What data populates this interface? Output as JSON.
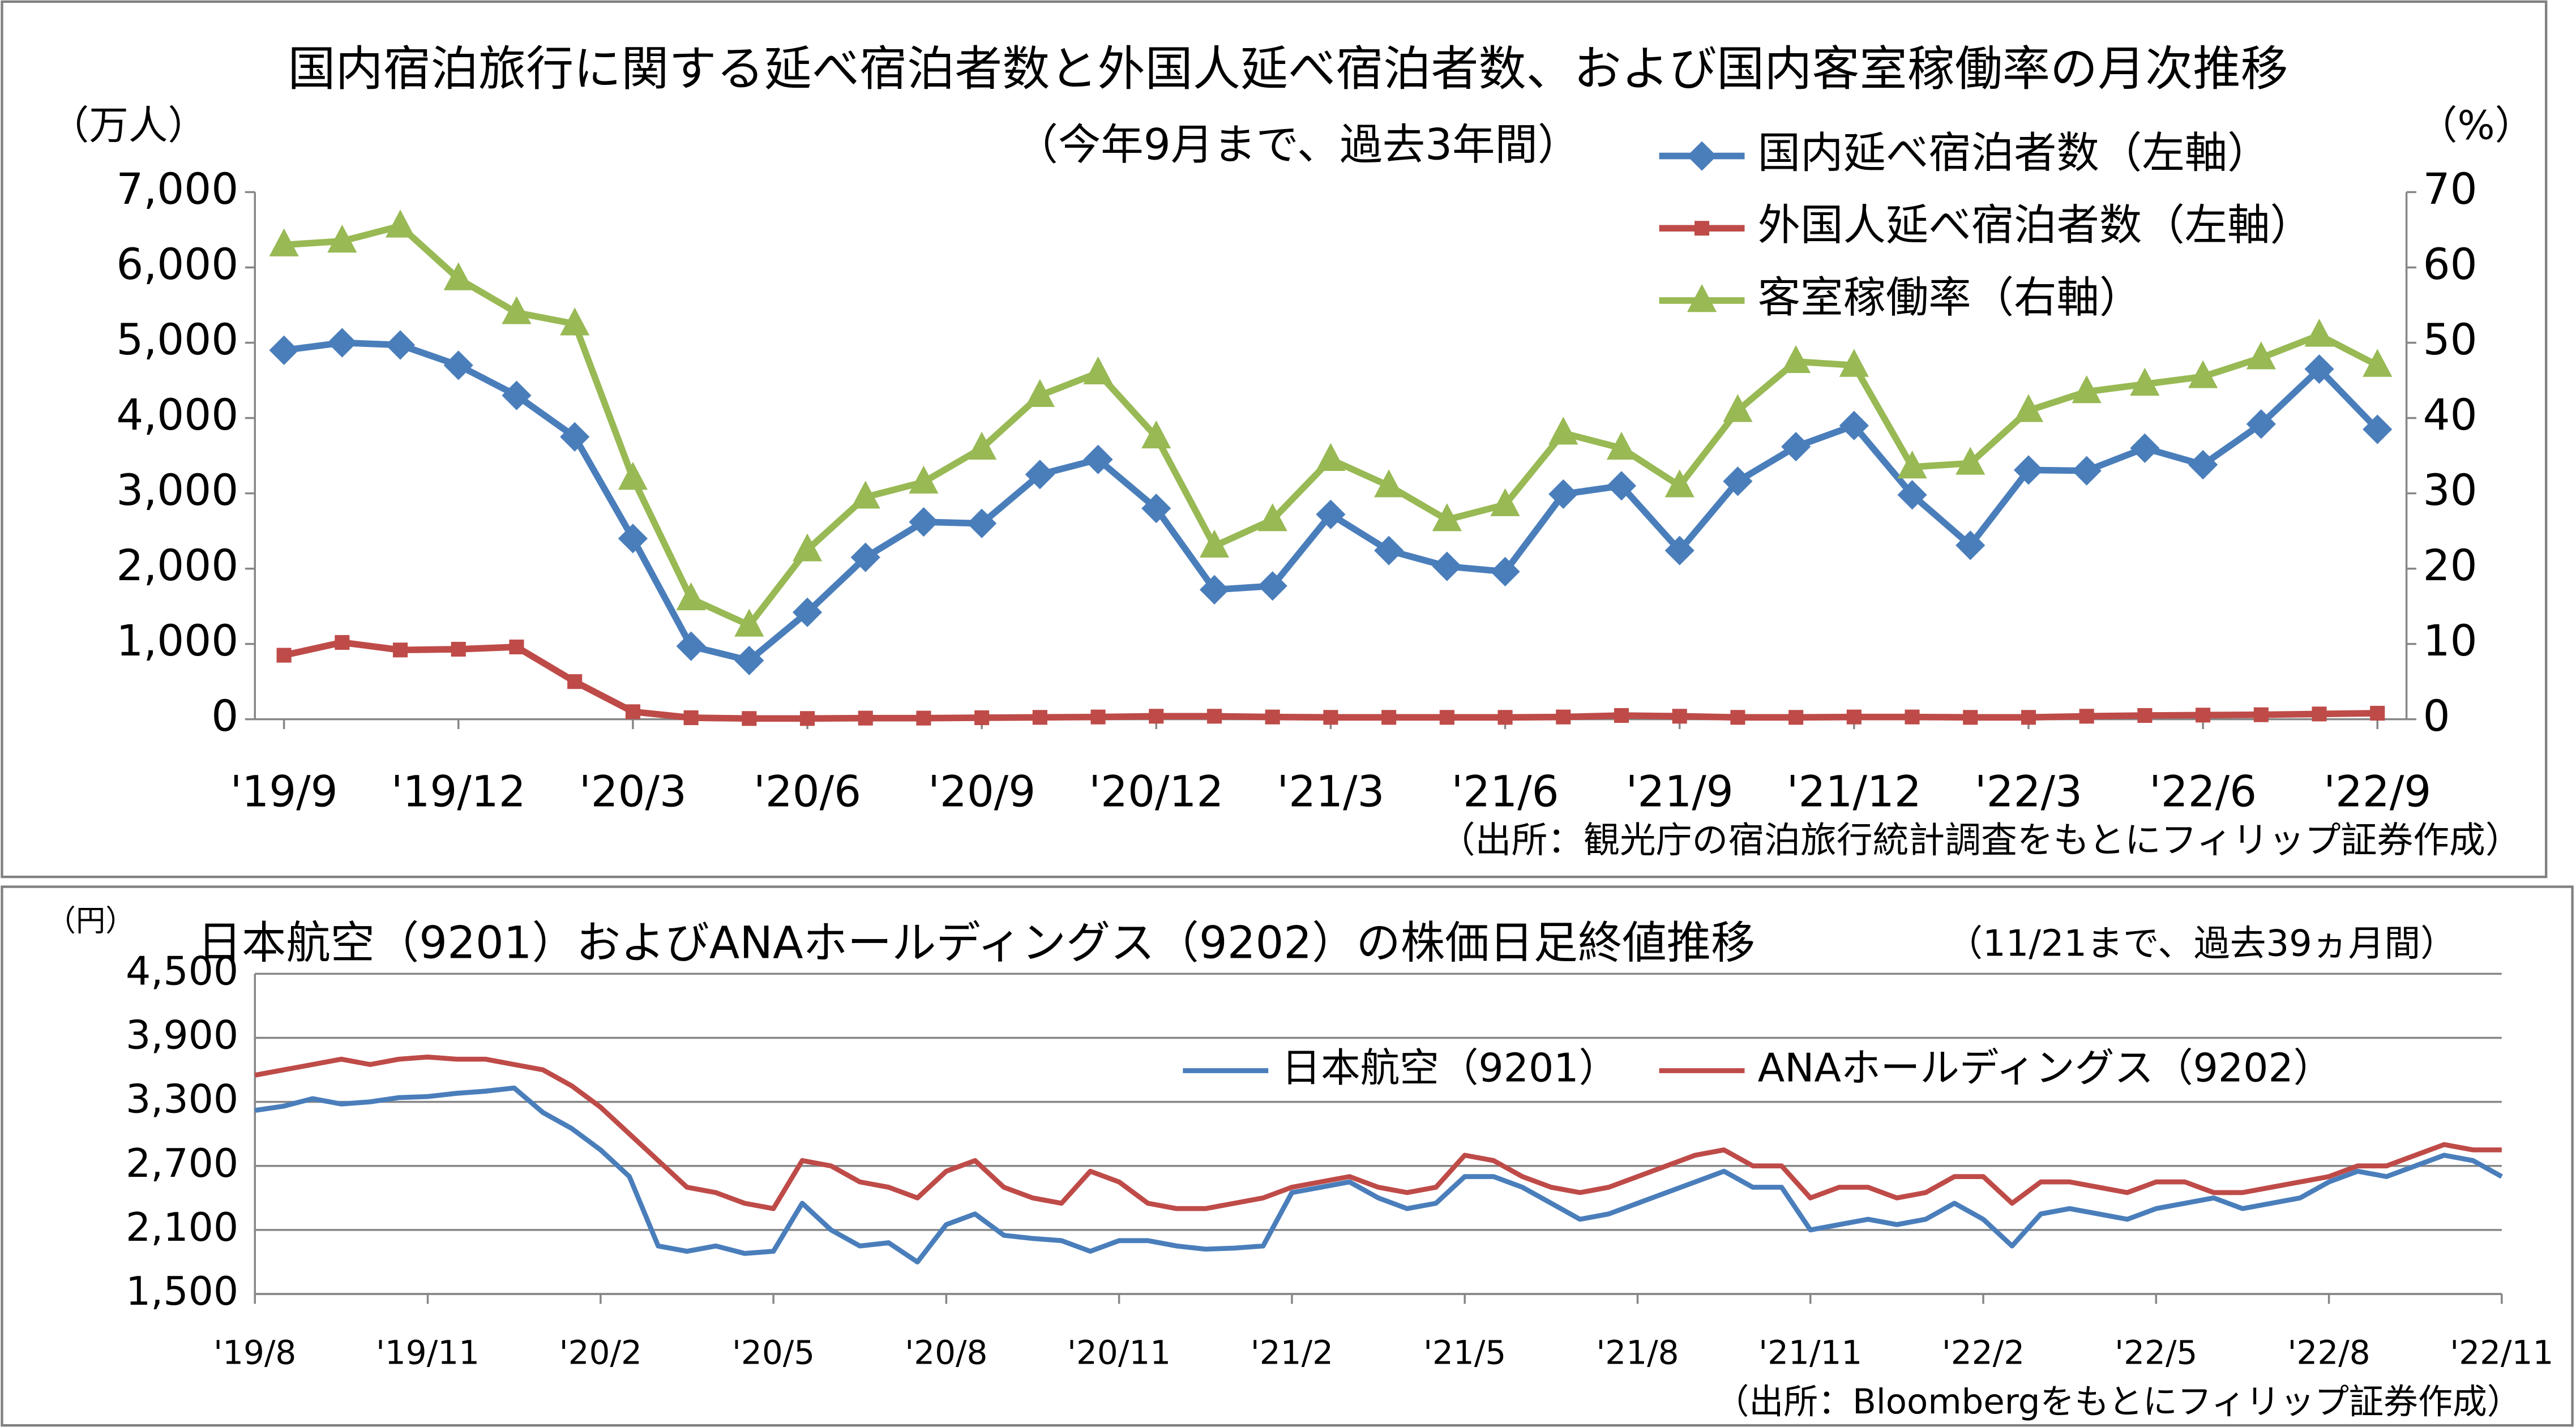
{
  "chart_data": [
    {
      "type": "line",
      "title": "国内宿泊旅行に関する延べ宿泊者数と外国人延べ宿泊者数、および国内客室稼働率の月次推移",
      "subtitle": "（今年9月まで、過去3年間）",
      "y_label": "（万人）",
      "y2_label": "（%）",
      "source": "（出所：観光庁の宿泊旅行統計調査をもとにフィリップ証券作成）",
      "categories": [
        "'19/9",
        null,
        null,
        "'19/12",
        null,
        null,
        "'20/3",
        null,
        null,
        "'20/6",
        null,
        null,
        "'20/9",
        null,
        null,
        "'20/12",
        null,
        null,
        "'21/3",
        null,
        null,
        "'21/6",
        null,
        null,
        "'21/9",
        null,
        null,
        "'21/12",
        null,
        null,
        "'22/3",
        null,
        null,
        "'22/6",
        null,
        null,
        "'22/9"
      ],
      "series": [
        {
          "name": "国内延べ宿泊者数（左軸）",
          "color": "#4a7ebb",
          "marker": "diamond",
          "values": [
            4900,
            5000,
            4970,
            4700,
            4300,
            3750,
            2400,
            970,
            780,
            1420,
            2150,
            2620,
            2600,
            3250,
            3450,
            2800,
            1720,
            1770,
            2720,
            2240,
            2030,
            1960,
            2990,
            3100,
            2240,
            3160,
            3620,
            3900,
            2980,
            2310,
            3310,
            3300,
            3600,
            3380,
            3920,
            4650,
            3850
          ]
        },
        {
          "name": "外国人延べ宿泊者数（左軸）",
          "color": "#be4b48",
          "marker": "square",
          "values": [
            850,
            1020,
            920,
            930,
            960,
            500,
            100,
            20,
            10,
            10,
            15,
            15,
            20,
            25,
            30,
            40,
            40,
            30,
            25,
            25,
            25,
            25,
            30,
            50,
            40,
            25,
            25,
            30,
            30,
            25,
            25,
            40,
            50,
            55,
            60,
            70,
            80
          ]
        },
        {
          "name": "客室稼働率（右軸）",
          "color": "#98b954",
          "marker": "triangle",
          "axis": "y2",
          "values": [
            63,
            63.5,
            65.5,
            58.5,
            54,
            52.5,
            32,
            16,
            12.5,
            22.5,
            29.5,
            31.5,
            36,
            43,
            46,
            37.5,
            23,
            26.5,
            34.5,
            31,
            26.5,
            28.5,
            38,
            36,
            31,
            41,
            47.5,
            47,
            33.5,
            34,
            41,
            43.5,
            44.5,
            45.5,
            48,
            51,
            47
          ]
        }
      ],
      "ylim": [
        0,
        7000
      ],
      "yticks": [
        0,
        {
          "value": 1000,
          "label": "1,000"
        },
        {
          "value": 2000,
          "label": "2,000"
        },
        {
          "value": 3000,
          "label": "3,000"
        },
        {
          "value": 4000,
          "label": "4,000"
        },
        {
          "value": 5000,
          "label": "5,000"
        },
        {
          "value": 6000,
          "label": "6,000"
        },
        {
          "value": 7000,
          "label": "7,000"
        }
      ],
      "y2lim": [
        0,
        70
      ],
      "y2ticks": [
        0,
        10,
        20,
        30,
        40,
        50,
        60,
        70
      ],
      "grid": false,
      "legend": "upper right"
    },
    {
      "type": "line",
      "title": "日本航空（9201）およびANAホールディングス（9202）の株価日足終値推移",
      "subtitle": "（11/21まで、過去39ヵ月間）",
      "y_label": "（円）",
      "source": "（出所：Bloombergをもとにフィリップ証券作成）",
      "categories": [
        "'19/8",
        null,
        null,
        null,
        null,
        null,
        "'19/11",
        null,
        null,
        null,
        null,
        null,
        "'20/2",
        null,
        null,
        null,
        null,
        null,
        "'20/5",
        null,
        null,
        null,
        null,
        null,
        "'20/8",
        null,
        null,
        null,
        null,
        null,
        "'20/11",
        null,
        null,
        null,
        null,
        null,
        "'21/2",
        null,
        null,
        null,
        null,
        null,
        "'21/5",
        null,
        null,
        null,
        null,
        null,
        "'21/8",
        null,
        null,
        null,
        null,
        null,
        "'21/11",
        null,
        null,
        null,
        null,
        null,
        "'22/2",
        null,
        null,
        null,
        null,
        null,
        "'22/5",
        null,
        null,
        null,
        null,
        null,
        "'22/8",
        null,
        null,
        null,
        null,
        null,
        "'22/11"
      ],
      "series": [
        {
          "name": "日本航空（9201）",
          "color": "#4a7ebb",
          "values": [
            3220,
            3260,
            3330,
            3280,
            3300,
            3340,
            3350,
            3380,
            3400,
            3430,
            3200,
            3050,
            2850,
            2600,
            1950,
            1900,
            1950,
            1880,
            1900,
            2350,
            2100,
            1950,
            1980,
            1800,
            2150,
            2250,
            2050,
            2020,
            2000,
            1900,
            2000,
            2000,
            1950,
            1920,
            1930,
            1950,
            2450,
            2500,
            2550,
            2400,
            2300,
            2350,
            2600,
            2600,
            2500,
            2350,
            2200,
            2250,
            2350,
            2450,
            2550,
            2650,
            2500,
            2500,
            2100,
            2150,
            2200,
            2150,
            2200,
            2350,
            2200,
            1950,
            2250,
            2300,
            2250,
            2200,
            2300,
            2350,
            2400,
            2300,
            2350,
            2400,
            2550,
            2650,
            2600,
            2700,
            2800,
            2750,
            2600
          ]
        },
        {
          "name": "ANAホールディングス（9202）",
          "color": "#be4b48",
          "values": [
            3550,
            3600,
            3650,
            3700,
            3650,
            3700,
            3720,
            3700,
            3700,
            3650,
            3600,
            3450,
            3250,
            3000,
            2750,
            2500,
            2450,
            2350,
            2300,
            2750,
            2700,
            2550,
            2500,
            2400,
            2650,
            2750,
            2500,
            2400,
            2350,
            2650,
            2550,
            2350,
            2300,
            2300,
            2350,
            2400,
            2500,
            2550,
            2600,
            2500,
            2450,
            2500,
            2800,
            2750,
            2600,
            2500,
            2450,
            2500,
            2600,
            2700,
            2800,
            2850,
            2700,
            2700,
            2400,
            2500,
            2500,
            2400,
            2450,
            2600,
            2600,
            2350,
            2550,
            2550,
            2500,
            2450,
            2550,
            2550,
            2450,
            2450,
            2500,
            2550,
            2600,
            2700,
            2700,
            2800,
            2900,
            2850,
            2850
          ]
        }
      ],
      "ylim": [
        1500,
        4500
      ],
      "yticks": [
        {
          "value": 1500,
          "label": "1,500"
        },
        {
          "value": 2100,
          "label": "2,100"
        },
        {
          "value": 2700,
          "label": "2,700"
        },
        {
          "value": 3300,
          "label": "3,300"
        },
        {
          "value": 3900,
          "label": "3,900"
        },
        {
          "value": 4500,
          "label": "4,500"
        }
      ],
      "grid": true,
      "legend": "upper right"
    }
  ]
}
